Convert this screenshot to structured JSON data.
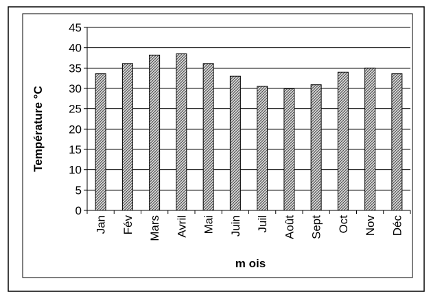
{
  "chart_data": {
    "type": "bar",
    "categories": [
      "Jan",
      "Fév",
      "Mars",
      "Avril",
      "Mai",
      "Juin",
      "Juil",
      "Août",
      "Sept",
      "Oct",
      "Nov",
      "Déc"
    ],
    "values": [
      33.6,
      36.1,
      38.2,
      38.5,
      36.1,
      33.0,
      30.5,
      29.9,
      30.9,
      34.0,
      35.0,
      33.6
    ],
    "title": "",
    "xlabel": "m ois",
    "ylabel": "Température °C",
    "ylim": [
      0,
      45
    ],
    "yticks": [
      "0",
      "5",
      "10",
      "15",
      "20",
      "25",
      "30",
      "35",
      "40",
      "45"
    ],
    "grid": true,
    "legend": "none",
    "bar_fill_pattern": "crosshatch",
    "colors": {
      "bar_fill_base": "#e6e6e6",
      "bar_hatch": "#4a4a4a",
      "bar_outline": "#000000",
      "axis": "#000000",
      "grid": "#000000",
      "frame": "#000000"
    }
  }
}
